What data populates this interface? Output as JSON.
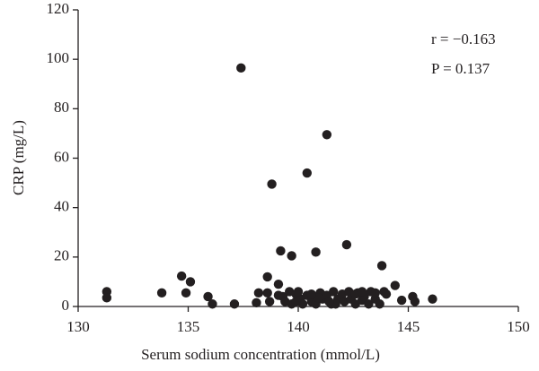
{
  "chart_data": {
    "type": "scatter",
    "x_label": "Serum sodium concentration (mmol/L)",
    "y_label": "CRP (mg/L)",
    "annotations": [
      "r = −0.163",
      "P = 0.137"
    ],
    "color": "#231f20",
    "xlim": [
      130,
      150
    ],
    "xticks": [
      130,
      135,
      140,
      145,
      150
    ],
    "ylim": [
      0,
      120
    ],
    "yticks": [
      0,
      20,
      40,
      60,
      80,
      100,
      120
    ],
    "grid": false,
    "x": [
      131.3,
      131.3,
      133.8,
      134.7,
      134.9,
      135.1,
      135.9,
      136.1,
      137.1,
      137.4,
      138.1,
      138.2,
      138.6,
      138.8,
      138.6,
      138.7,
      139.1,
      139.2,
      139.3,
      139.4,
      139.6,
      139.7,
      139.7,
      139.9,
      140.1,
      140.2,
      140.4,
      140.4,
      140.6,
      140.8,
      140.8,
      141,
      141.1,
      141.3,
      141.3,
      141.5,
      141.6,
      141.8,
      142,
      142.1,
      142.2,
      142.3,
      142.4,
      142.6,
      142.7,
      142.9,
      143,
      143.2,
      143.3,
      143.5,
      143.7,
      143.8,
      143.9,
      144,
      144.4,
      144.7,
      145.2,
      145.3,
      146.1,
      139.1,
      139.9,
      140.9,
      141.7,
      142.6,
      143.5,
      140,
      140.6,
      141.4,
      142.9
    ],
    "values": [
      6,
      3.5,
      5.5,
      12.3,
      5.5,
      10,
      4,
      1,
      1,
      96.5,
      1.5,
      5.5,
      12,
      49.5,
      5.5,
      2,
      9,
      22.5,
      4,
      2,
      6,
      20.5,
      1,
      5,
      3,
      1,
      54,
      4.5,
      2,
      22,
      1,
      5.5,
      3,
      69.5,
      4.5,
      1,
      6,
      3,
      5,
      2,
      25,
      6,
      3,
      1,
      5.5,
      2.5,
      4,
      1,
      6,
      3,
      1,
      16.5,
      6,
      5,
      8.5,
      2.5,
      4,
      2,
      3,
      4.5,
      2,
      3.5,
      1,
      5,
      5.5,
      6,
      5,
      2,
      6
    ]
  }
}
